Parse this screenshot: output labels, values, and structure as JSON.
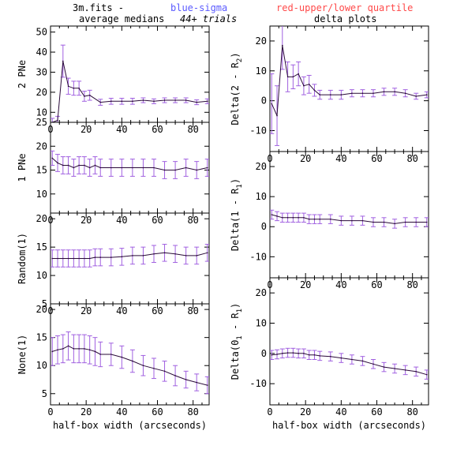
{
  "header": {
    "file_label": "3m.fits  -",
    "sigma_label": "blue-sigma",
    "quartile_label": "red-upper/lower quartile",
    "left_title": "average medians",
    "trials_label": "44+ trials",
    "right_title": "delta plots"
  },
  "colors": {
    "sigma": "#5a5aff",
    "quartile": "#ff4a4a",
    "line": "#2a0a3a",
    "error": "#a060e0",
    "axes": "#000000"
  },
  "chart_data": [
    {
      "type": "line",
      "column": "left",
      "row": 0,
      "ylabel": "2 PNe",
      "ylim": [
        5,
        53
      ],
      "yticks": [
        10,
        20,
        30,
        40,
        50
      ],
      "xlim": [
        0,
        89
      ],
      "xticks": [
        0,
        20,
        40,
        60,
        80
      ],
      "x": [
        1,
        4,
        7,
        10,
        13,
        16,
        19,
        22,
        28,
        34,
        40,
        46,
        52,
        58,
        64,
        70,
        76,
        82,
        88
      ],
      "y": [
        5,
        6,
        35.5,
        23,
        22,
        22,
        18,
        18.5,
        15,
        15.5,
        15.5,
        15.5,
        16,
        15.5,
        16,
        16,
        16,
        15,
        15.5
      ],
      "err": [
        2,
        2,
        8,
        4,
        3.5,
        3.5,
        2.5,
        2.5,
        1.5,
        1.5,
        1.5,
        1.5,
        1.2,
        1.2,
        1.2,
        1.2,
        1.2,
        1.2,
        1.2
      ]
    },
    {
      "type": "line",
      "column": "left",
      "row": 1,
      "ylabel": "1 PNe",
      "ylim": [
        6,
        25
      ],
      "yticks": [
        10,
        15,
        20,
        25
      ],
      "xlim": [
        0,
        89
      ],
      "xticks": [
        0,
        20,
        40,
        60,
        80
      ],
      "x": [
        1,
        4,
        7,
        10,
        13,
        16,
        19,
        22,
        25,
        28,
        34,
        40,
        46,
        52,
        58,
        64,
        70,
        76,
        82,
        88
      ],
      "y": [
        17.5,
        16.5,
        16,
        16,
        15.5,
        16,
        16,
        15.5,
        16,
        15.5,
        15.5,
        15.5,
        15.5,
        15.5,
        15.5,
        15,
        15,
        15.5,
        15,
        15.5
      ],
      "err": [
        1.5,
        1.8,
        1.8,
        1.8,
        1.8,
        1.8,
        1.8,
        1.8,
        1.8,
        1.8,
        1.8,
        1.8,
        1.8,
        1.8,
        1.8,
        1.8,
        1.8,
        1.8,
        1.8,
        1.8
      ]
    },
    {
      "type": "line",
      "column": "left",
      "row": 2,
      "ylabel": "Random(1)",
      "ylim": [
        5,
        21
      ],
      "yticks": [
        5,
        10,
        15,
        20
      ],
      "xlim": [
        0,
        89
      ],
      "xticks": [
        0,
        20,
        40,
        60,
        80
      ],
      "x": [
        1,
        4,
        7,
        10,
        13,
        16,
        19,
        22,
        25,
        28,
        34,
        40,
        46,
        52,
        58,
        64,
        70,
        76,
        82,
        88
      ],
      "y": [
        13,
        13,
        13,
        13,
        13,
        13,
        13,
        13,
        13.2,
        13.2,
        13.2,
        13.3,
        13.5,
        13.5,
        13.8,
        14,
        13.8,
        13.5,
        13.5,
        14
      ],
      "err": [
        1.5,
        1.5,
        1.5,
        1.5,
        1.5,
        1.5,
        1.5,
        1.5,
        1.5,
        1.5,
        1.5,
        1.5,
        1.5,
        1.5,
        1.5,
        1.5,
        1.5,
        1.5,
        1.5,
        1.5
      ]
    },
    {
      "type": "line",
      "column": "left",
      "row": 3,
      "ylabel": "None(1)",
      "ylim": [
        3,
        21
      ],
      "yticks": [
        5,
        10,
        15,
        20
      ],
      "xlim": [
        0,
        89
      ],
      "xticks": [
        0,
        20,
        40,
        60,
        80
      ],
      "xlabel": "half-box width (arcseconds)",
      "x": [
        1,
        4,
        7,
        10,
        13,
        16,
        19,
        22,
        25,
        28,
        34,
        40,
        46,
        52,
        58,
        64,
        70,
        76,
        82,
        88
      ],
      "y": [
        12.5,
        12.8,
        13,
        13.5,
        13,
        13,
        13,
        12.8,
        12.5,
        12,
        12,
        11.5,
        10.8,
        10,
        9.5,
        9,
        8.2,
        7.5,
        7,
        6.5
      ],
      "err": [
        2.5,
        2.5,
        2.5,
        2.5,
        2.5,
        2.5,
        2.5,
        2.5,
        2.5,
        2.2,
        2,
        2,
        2,
        1.8,
        1.8,
        1.8,
        1.8,
        1.5,
        1.5,
        1.5
      ]
    },
    {
      "type": "line",
      "column": "right",
      "row": 0,
      "ylabel": "Delta(2 - R",
      "ylabel_sub": "2",
      "ylabel_end": ")",
      "ylim": [
        -17,
        25
      ],
      "yticks": [
        -10,
        0,
        10,
        20
      ],
      "xlim": [
        0,
        89
      ],
      "xticks": [
        0,
        20,
        40,
        60,
        80
      ],
      "x": [
        1,
        4,
        7,
        10,
        13,
        16,
        19,
        22,
        25,
        28,
        34,
        40,
        46,
        52,
        58,
        64,
        70,
        76,
        82,
        88
      ],
      "y": [
        -1,
        -5,
        18.5,
        8,
        8,
        9,
        5,
        5.5,
        3.5,
        2,
        2,
        2,
        2.5,
        2.5,
        2.5,
        3,
        3,
        2.5,
        1.5,
        2
      ],
      "err": [
        10,
        10,
        8,
        5,
        4,
        4,
        3,
        3,
        2,
        1.5,
        1.5,
        1.5,
        1.2,
        1.2,
        1.2,
        1.2,
        1.2,
        1.2,
        1,
        1
      ]
    },
    {
      "type": "line",
      "column": "right",
      "row": 1,
      "ylabel": "Delta(1 - R",
      "ylabel_sub": "1",
      "ylabel_end": ")",
      "ylim": [
        -17,
        25
      ],
      "yticks": [
        -10,
        0,
        10,
        20
      ],
      "xlim": [
        0,
        89
      ],
      "xticks": [
        0,
        20,
        40,
        60,
        80
      ],
      "x": [
        1,
        4,
        7,
        10,
        13,
        16,
        19,
        22,
        25,
        28,
        34,
        40,
        46,
        52,
        58,
        64,
        70,
        76,
        82,
        88
      ],
      "y": [
        4,
        3.5,
        3,
        3,
        3,
        3,
        3,
        2.5,
        2.5,
        2.5,
        2.5,
        2,
        2,
        2,
        1.5,
        1.5,
        1,
        1.5,
        1.5,
        1.5
      ],
      "err": [
        1.5,
        1.5,
        1.5,
        1.5,
        1.5,
        1.5,
        1.5,
        1.5,
        1.5,
        1.5,
        1.5,
        1.5,
        1.5,
        1.5,
        1.5,
        1.5,
        1.5,
        1.5,
        1.5,
        1.5
      ]
    },
    {
      "type": "line",
      "column": "right",
      "row": 2,
      "ylabel": "Delta(0",
      "ylabel_sub": "1",
      "ylabel_end": " - R",
      "ylabel_sub2": "1",
      "ylabel_end2": ")",
      "ylim": [
        -17,
        25
      ],
      "yticks": [
        -10,
        0,
        10,
        20
      ],
      "xlim": [
        0,
        89
      ],
      "xticks": [
        0,
        20,
        40,
        60,
        80
      ],
      "xlabel": "half-box width (arcseconds)",
      "x": [
        1,
        4,
        7,
        10,
        13,
        16,
        19,
        22,
        25,
        28,
        34,
        40,
        46,
        52,
        58,
        64,
        70,
        76,
        82,
        88
      ],
      "y": [
        -0.5,
        -0.3,
        0,
        0.2,
        0.2,
        0,
        0,
        -0.5,
        -0.5,
        -0.8,
        -1,
        -1.5,
        -2,
        -2.5,
        -3.5,
        -4.5,
        -5,
        -5.5,
        -6,
        -7
      ],
      "err": [
        1.5,
        1.5,
        1.5,
        1.5,
        1.5,
        1.5,
        1.5,
        1.5,
        1.5,
        1.5,
        1.5,
        1.5,
        1.5,
        1.5,
        1.5,
        1.5,
        1.5,
        1.5,
        1.5,
        1.5
      ]
    }
  ]
}
